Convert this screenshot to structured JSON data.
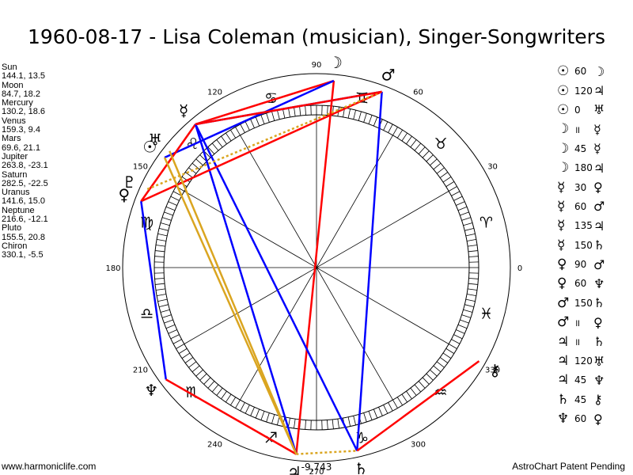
{
  "header": {
    "title": "1960-08-17 - Lisa Coleman (musician), Singer-Songwriters"
  },
  "planets": [
    {
      "name": "Sun",
      "lon": 144.1,
      "lat": 13.5,
      "glyph": "☉"
    },
    {
      "name": "Moon",
      "lon": 84.7,
      "lat": 18.2,
      "glyph": "☽"
    },
    {
      "name": "Mercury",
      "lon": 130.2,
      "lat": 18.6,
      "glyph": "☿"
    },
    {
      "name": "Venus",
      "lon": 159.3,
      "lat": 9.4,
      "glyph": "♀"
    },
    {
      "name": "Mars",
      "lon": 69.6,
      "lat": 21.1,
      "glyph": "♂"
    },
    {
      "name": "Jupiter",
      "lon": 263.8,
      "lat": -23.1,
      "glyph": "♃"
    },
    {
      "name": "Saturn",
      "lon": 282.5,
      "lat": -22.5,
      "glyph": "♄"
    },
    {
      "name": "Uranus",
      "lon": 141.6,
      "lat": 15.0,
      "glyph": "♅"
    },
    {
      "name": "Neptune",
      "lon": 216.6,
      "lat": -12.1,
      "glyph": "♆"
    },
    {
      "name": "Pluto",
      "lon": 155.5,
      "lat": 20.8,
      "glyph": "♇"
    },
    {
      "name": "Chiron",
      "lon": 330.1,
      "lat": -5.5,
      "glyph": "⚷"
    }
  ],
  "positions_text": [
    "Sun",
    "144.1, 13.5",
    "Moon",
    "84.7, 18.2",
    "Mercury",
    "130.2, 18.6",
    "Venus",
    "159.3, 9.4",
    "Mars",
    "69.6, 21.1",
    "Jupiter",
    "263.8, -23.1",
    "Saturn",
    "282.5, -22.5",
    "Uranus",
    "141.6, 15.0",
    "Neptune",
    "216.6, -12.1",
    "Pluto",
    "155.5, 20.8",
    "Chiron",
    "330.1, -5.5"
  ],
  "aspects": [
    {
      "p1": "☉",
      "angle": "60",
      "p2": "☽"
    },
    {
      "p1": "☉",
      "angle": "120",
      "p2": "♃"
    },
    {
      "p1": "☉",
      "angle": "0",
      "p2": "♅"
    },
    {
      "p1": "☽",
      "angle": "॥",
      "p2": "☿"
    },
    {
      "p1": "☽",
      "angle": "45",
      "p2": "☿"
    },
    {
      "p1": "☽",
      "angle": "180",
      "p2": "♃"
    },
    {
      "p1": "☿",
      "angle": "30",
      "p2": "♀"
    },
    {
      "p1": "☿",
      "angle": "60",
      "p2": "♂"
    },
    {
      "p1": "☿",
      "angle": "135",
      "p2": "♃"
    },
    {
      "p1": "☿",
      "angle": "150",
      "p2": "♄"
    },
    {
      "p1": "♀",
      "angle": "90",
      "p2": "♂"
    },
    {
      "p1": "♀",
      "angle": "60",
      "p2": "♆"
    },
    {
      "p1": "♂",
      "angle": "150",
      "p2": "♄"
    },
    {
      "p1": "♂",
      "angle": "॥",
      "p2": "♀"
    },
    {
      "p1": "♃",
      "angle": "॥",
      "p2": "♄"
    },
    {
      "p1": "♃",
      "angle": "120",
      "p2": "♅"
    },
    {
      "p1": "♃",
      "angle": "45",
      "p2": "♆"
    },
    {
      "p1": "♄",
      "angle": "45",
      "p2": "⚷"
    },
    {
      "p1": "♆",
      "angle": "60",
      "p2": "♀"
    }
  ],
  "degree_labels": [
    "0",
    "30",
    "60",
    "90",
    "120",
    "150",
    "180",
    "210",
    "240",
    "270",
    "300",
    "330"
  ],
  "zodiac": [
    {
      "deg": 15,
      "glyph": "♈"
    },
    {
      "deg": 45,
      "glyph": "♉"
    },
    {
      "deg": 75,
      "glyph": "♊"
    },
    {
      "deg": 105,
      "glyph": "♋"
    },
    {
      "deg": 135,
      "glyph": "♌"
    },
    {
      "deg": 165,
      "glyph": "♍"
    },
    {
      "deg": 195,
      "glyph": "♎"
    },
    {
      "deg": 225,
      "glyph": "♏"
    },
    {
      "deg": 255,
      "glyph": "♐"
    },
    {
      "deg": 285,
      "glyph": "♑"
    },
    {
      "deg": 315,
      "glyph": "♒"
    },
    {
      "deg": 345,
      "glyph": "♓"
    }
  ],
  "aspect_lines": [
    {
      "from": "Moon",
      "to": "Mercury",
      "color": "#ff0000"
    },
    {
      "from": "Moon",
      "to": "Jupiter",
      "color": "#ff0000"
    },
    {
      "from": "Moon",
      "to": "Sun",
      "color": "#0000ff"
    },
    {
      "from": "Mercury",
      "to": "Mars",
      "color": "#0000ff"
    },
    {
      "from": "Mercury",
      "to": "Venus",
      "color": "#ff0000"
    },
    {
      "from": "Mercury",
      "to": "Jupiter",
      "color": "#0000ff"
    },
    {
      "from": "Mercury",
      "to": "Saturn",
      "color": "#0000ff"
    },
    {
      "from": "Mars",
      "to": "Venus",
      "color": "#ff0000"
    },
    {
      "from": "Mars",
      "to": "Saturn",
      "color": "#0000ff"
    },
    {
      "from": "Mars",
      "to": "Pluto",
      "color": "#daa520",
      "dashed": true
    },
    {
      "from": "Mars",
      "to": "Mercury",
      "color": "#ff0000"
    },
    {
      "from": "Venus",
      "to": "Neptune",
      "color": "#0000ff"
    },
    {
      "from": "Neptune",
      "to": "Jupiter",
      "color": "#ff0000"
    },
    {
      "from": "Jupiter",
      "to": "Sun",
      "color": "#daa520"
    },
    {
      "from": "Jupiter",
      "to": "Uranus",
      "color": "#daa520"
    },
    {
      "from": "Jupiter",
      "to": "Saturn",
      "color": "#daa520",
      "dashed": true
    },
    {
      "from": "Saturn",
      "to": "Chiron",
      "color": "#ff0000"
    }
  ],
  "colors": {
    "hard": "#ff0000",
    "soft": "#0000ff",
    "minor": "#daa520"
  },
  "bottom_value": "-9,743",
  "footer": {
    "left": "www.harmoniclife.com",
    "right": "AstroChart Patent Pending"
  }
}
